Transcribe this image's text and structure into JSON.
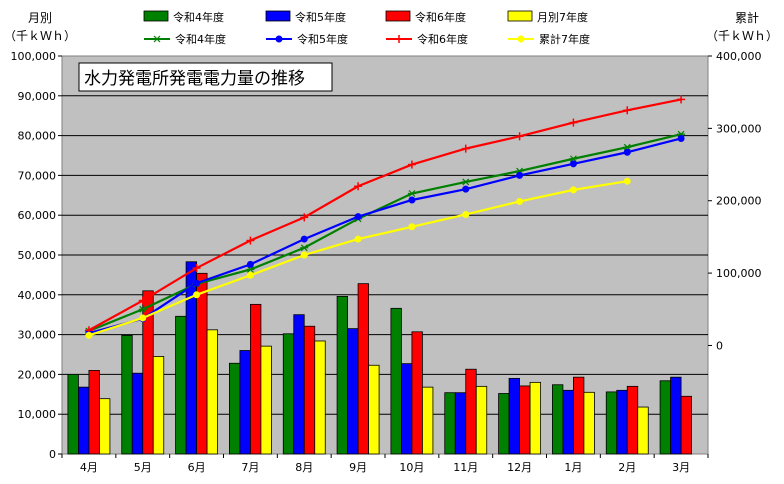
{
  "chart_data": {
    "type": "bar",
    "title": "水力発電所発電電力量の推移",
    "ylabel_left": "月別",
    "ylabel_left_unit": "（千ｋＷｈ）",
    "ylabel_right": "累計",
    "ylabel_right_unit": "（千ｋＷｈ）",
    "ylim_left": [
      0,
      100000
    ],
    "ylim_right": [
      -150000,
      400000
    ],
    "yticks_left": [
      "0",
      "10,000",
      "20,000",
      "30,000",
      "40,000",
      "50,000",
      "60,000",
      "70,000",
      "80,000",
      "90,000",
      "100,000"
    ],
    "yticks_right": [
      "0",
      "100,000",
      "200,000",
      "300,000",
      "400,000"
    ],
    "grid": true,
    "legend_position": "top",
    "categories": [
      "4月",
      "5月",
      "6月",
      "7月",
      "8月",
      "9月",
      "10月",
      "11月",
      "12月",
      "1月",
      "2月",
      "3月"
    ],
    "bar_series": [
      {
        "name": "令和4年度",
        "color": "#008000",
        "values": [
          20000,
          29800,
          34600,
          22800,
          30200,
          39600,
          36600,
          15400,
          15200,
          17400,
          15600,
          18400
        ]
      },
      {
        "name": "令和5年度",
        "color": "#0000ff",
        "values": [
          16800,
          20300,
          48300,
          26000,
          35000,
          31500,
          22700,
          15400,
          19000,
          16000,
          16000,
          19300
        ]
      },
      {
        "name": "令和6年度",
        "color": "#ff0000",
        "values": [
          21000,
          41000,
          45400,
          37600,
          32100,
          42800,
          30700,
          21300,
          17100,
          19300,
          17000,
          14500
        ]
      },
      {
        "name": "月別7年度",
        "color": "#ffff00",
        "values": [
          13900,
          24500,
          31200,
          27100,
          28400,
          22300,
          16800,
          17000,
          18000,
          15500,
          11800,
          null
        ]
      }
    ],
    "line_series": [
      {
        "name": "令和4年度",
        "color": "#008000",
        "marker": "star",
        "values": [
          20000,
          50000,
          85000,
          105000,
          135000,
          175000,
          210000,
          226000,
          241000,
          258000,
          274000,
          292000
        ]
      },
      {
        "name": "令和5年度",
        "color": "#0000ff",
        "marker": "circle",
        "values": [
          17000,
          37000,
          86000,
          112000,
          147000,
          178000,
          201000,
          216000,
          235000,
          251000,
          267000,
          286000
        ]
      },
      {
        "name": "令和6年度",
        "color": "#ff0000",
        "marker": "plus",
        "values": [
          21000,
          62000,
          107000,
          145000,
          177000,
          220000,
          250000,
          272000,
          289000,
          308000,
          325000,
          340000
        ]
      },
      {
        "name": "累計7年度",
        "color": "#ffff00",
        "marker": "circle",
        "values": [
          14000,
          38000,
          70000,
          97000,
          125000,
          147000,
          164000,
          181000,
          199000,
          215000,
          227000,
          null
        ]
      }
    ]
  }
}
